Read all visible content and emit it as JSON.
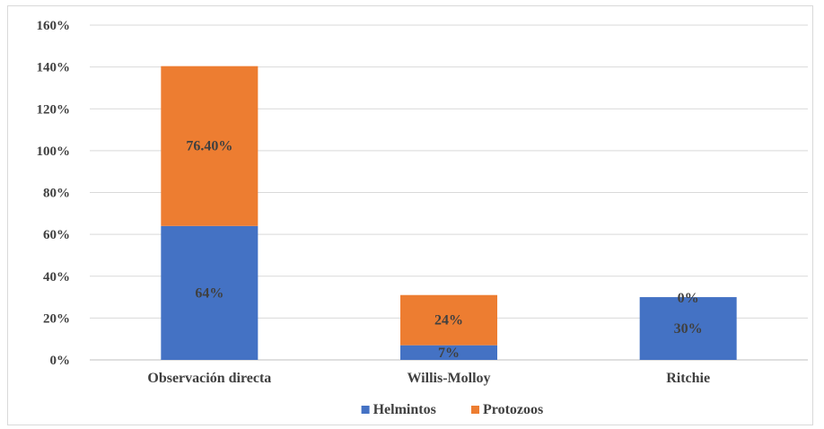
{
  "chart_data": {
    "type": "bar",
    "stacked": true,
    "categories": [
      "Observación directa",
      "Willis-Molloy",
      "Ritchie"
    ],
    "series": [
      {
        "name": "Helmintos",
        "values": [
          64,
          7,
          30
        ],
        "labels": [
          "64%",
          "7%",
          "30%"
        ],
        "color": "#4472C4"
      },
      {
        "name": "Protozoos",
        "values": [
          76.4,
          24,
          0
        ],
        "labels": [
          "76.40%",
          "24%",
          "0%"
        ],
        "color": "#ED7D31"
      }
    ],
    "yticks": [
      "0%",
      "20%",
      "40%",
      "60%",
      "80%",
      "100%",
      "120%",
      "140%",
      "160%"
    ],
    "ylim": [
      0,
      160
    ],
    "grid": true,
    "legend_position": "bottom"
  }
}
